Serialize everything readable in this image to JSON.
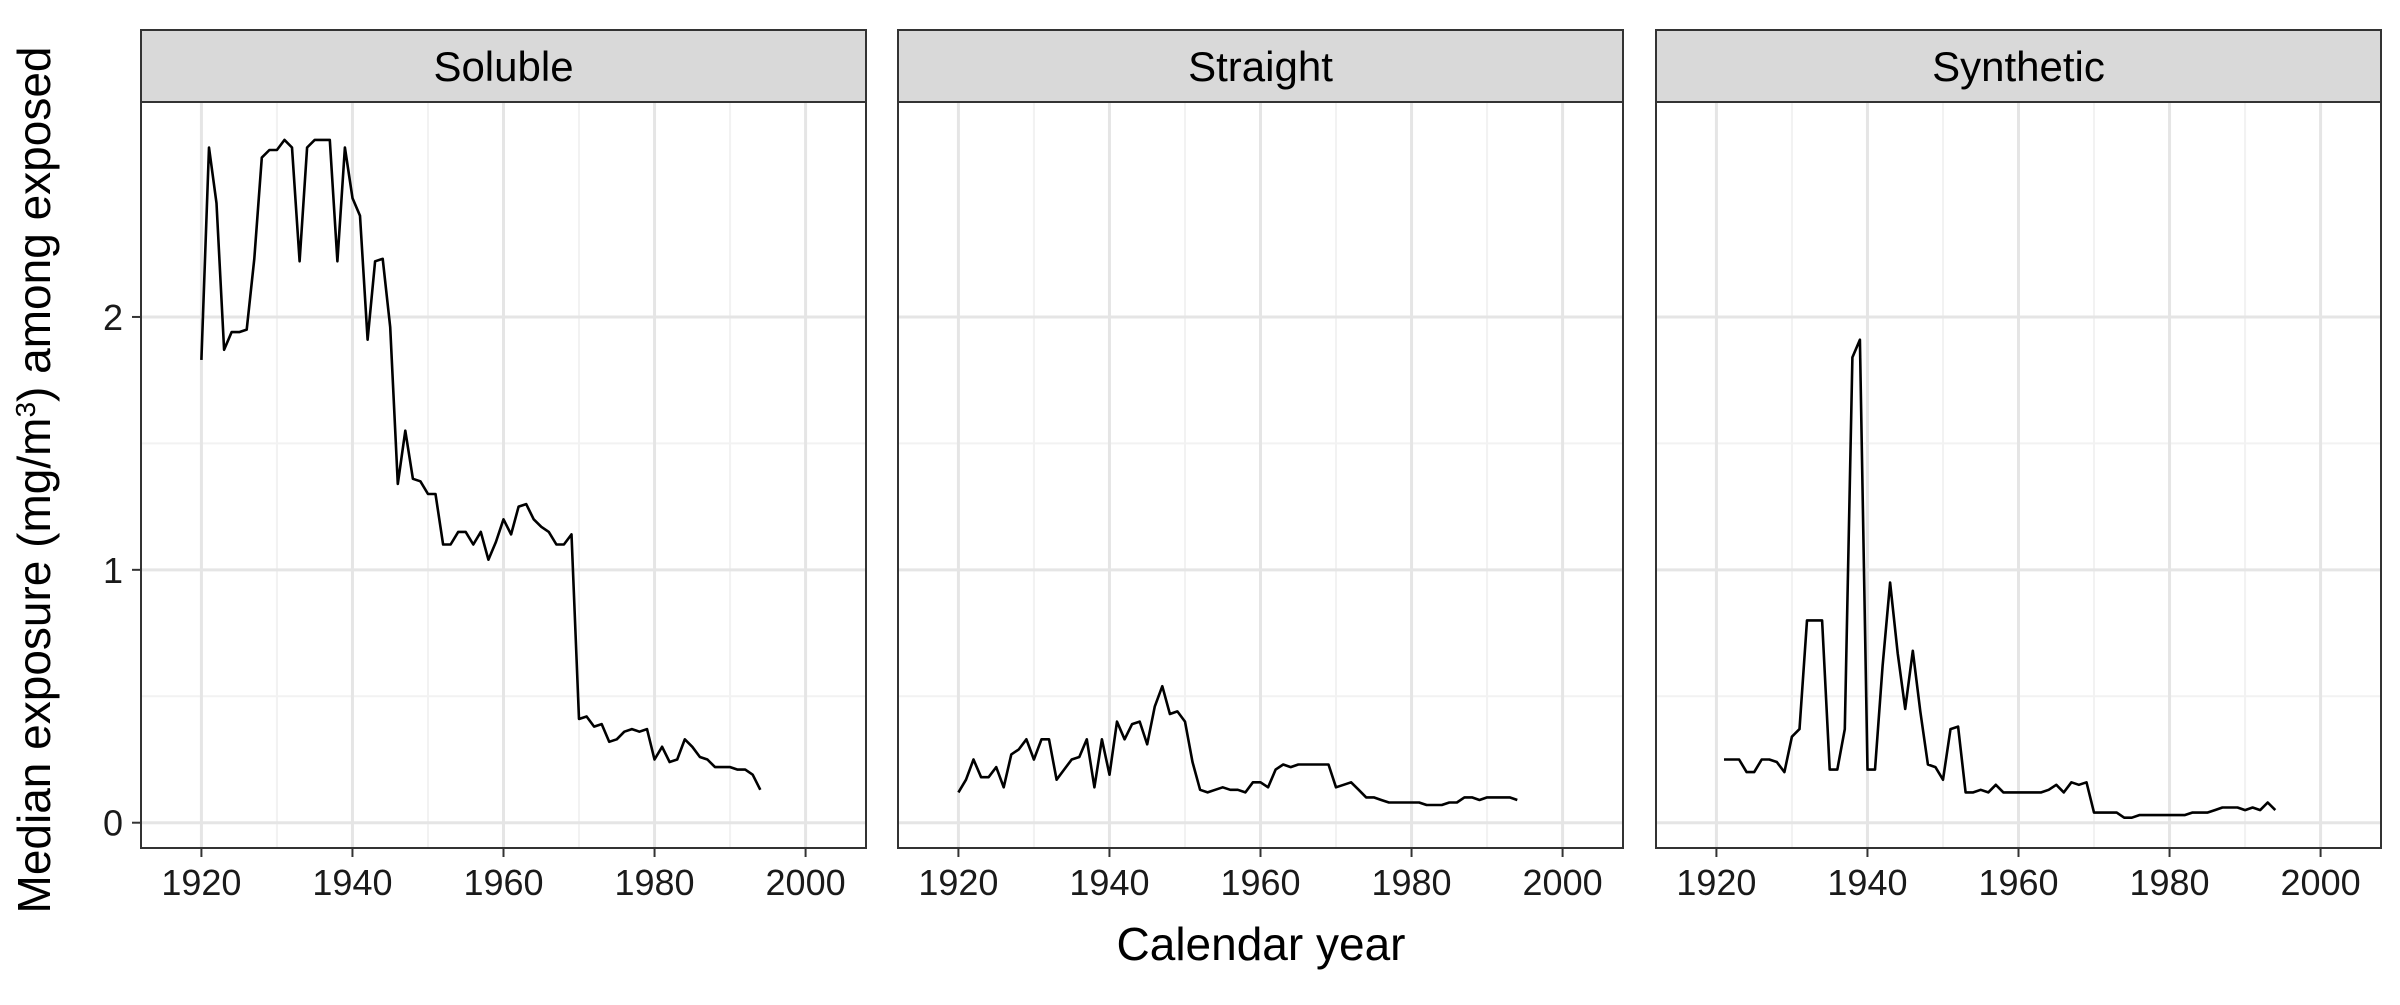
{
  "chart_data": {
    "type": "line",
    "xlabel": "Calendar year",
    "ylabel_prefix": "Median exposure (mg/m",
    "ylabel_sup": "3",
    "ylabel_suffix": ") among exposed",
    "xlim": [
      1912,
      2008
    ],
    "ylim": [
      -0.1,
      2.85
    ],
    "x_ticks": [
      1920,
      1940,
      1960,
      1980,
      2000
    ],
    "y_ticks": [
      0,
      1,
      2
    ],
    "grid": true,
    "line_color": "#000000",
    "panels": [
      {
        "name": "Soluble",
        "x": [
          1920,
          1921,
          1922,
          1923,
          1924,
          1925,
          1926,
          1927,
          1928,
          1929,
          1930,
          1931,
          1932,
          1933,
          1934,
          1935,
          1936,
          1937,
          1938,
          1939,
          1940,
          1941,
          1942,
          1943,
          1944,
          1945,
          1946,
          1947,
          1948,
          1949,
          1950,
          1951,
          1952,
          1953,
          1954,
          1955,
          1956,
          1957,
          1958,
          1959,
          1960,
          1961,
          1962,
          1963,
          1964,
          1965,
          1966,
          1967,
          1968,
          1969,
          1970,
          1971,
          1972,
          1973,
          1974,
          1975,
          1976,
          1977,
          1978,
          1979,
          1980,
          1981,
          1982,
          1983,
          1984,
          1985,
          1986,
          1987,
          1988,
          1989,
          1990,
          1991,
          1992,
          1993,
          1994
        ],
        "y": [
          1.83,
          2.67,
          2.45,
          1.87,
          1.94,
          1.94,
          1.95,
          2.23,
          2.63,
          2.66,
          2.66,
          2.7,
          2.67,
          2.22,
          2.67,
          2.7,
          2.7,
          2.7,
          2.22,
          2.67,
          2.47,
          2.4,
          1.91,
          2.22,
          2.23,
          1.96,
          1.34,
          1.55,
          1.36,
          1.35,
          1.3,
          1.3,
          1.1,
          1.1,
          1.15,
          1.15,
          1.1,
          1.15,
          1.04,
          1.11,
          1.2,
          1.14,
          1.25,
          1.26,
          1.2,
          1.17,
          1.15,
          1.1,
          1.1,
          1.14,
          0.41,
          0.42,
          0.38,
          0.39,
          0.32,
          0.33,
          0.36,
          0.37,
          0.36,
          0.37,
          0.25,
          0.3,
          0.24,
          0.25,
          0.33,
          0.3,
          0.26,
          0.25,
          0.22,
          0.22,
          0.22,
          0.21,
          0.21,
          0.19,
          0.13
        ]
      },
      {
        "name": "Straight",
        "x": [
          1920,
          1921,
          1922,
          1923,
          1924,
          1925,
          1926,
          1927,
          1928,
          1929,
          1930,
          1931,
          1932,
          1933,
          1934,
          1935,
          1936,
          1937,
          1938,
          1939,
          1940,
          1941,
          1942,
          1943,
          1944,
          1945,
          1946,
          1947,
          1948,
          1949,
          1950,
          1951,
          1952,
          1953,
          1954,
          1955,
          1956,
          1957,
          1958,
          1959,
          1960,
          1961,
          1962,
          1963,
          1964,
          1965,
          1966,
          1967,
          1968,
          1969,
          1970,
          1971,
          1972,
          1973,
          1974,
          1975,
          1976,
          1977,
          1978,
          1979,
          1980,
          1981,
          1982,
          1983,
          1984,
          1985,
          1986,
          1987,
          1988,
          1989,
          1990,
          1991,
          1992,
          1993,
          1994
        ],
        "y": [
          0.12,
          0.17,
          0.25,
          0.18,
          0.18,
          0.22,
          0.14,
          0.27,
          0.29,
          0.33,
          0.25,
          0.33,
          0.33,
          0.17,
          0.21,
          0.25,
          0.26,
          0.33,
          0.14,
          0.33,
          0.19,
          0.4,
          0.33,
          0.39,
          0.4,
          0.31,
          0.46,
          0.54,
          0.43,
          0.44,
          0.4,
          0.24,
          0.13,
          0.12,
          0.13,
          0.14,
          0.13,
          0.13,
          0.12,
          0.16,
          0.16,
          0.14,
          0.21,
          0.23,
          0.22,
          0.23,
          0.23,
          0.23,
          0.23,
          0.23,
          0.14,
          0.15,
          0.16,
          0.13,
          0.1,
          0.1,
          0.09,
          0.08,
          0.08,
          0.08,
          0.08,
          0.08,
          0.07,
          0.07,
          0.07,
          0.08,
          0.08,
          0.1,
          0.1,
          0.09,
          0.1,
          0.1,
          0.1,
          0.1,
          0.09
        ]
      },
      {
        "name": "Synthetic",
        "x": [
          1921,
          1922,
          1923,
          1924,
          1925,
          1926,
          1927,
          1928,
          1929,
          1930,
          1931,
          1932,
          1933,
          1934,
          1935,
          1936,
          1937,
          1938,
          1939,
          1940,
          1941,
          1942,
          1943,
          1944,
          1945,
          1946,
          1947,
          1948,
          1949,
          1950,
          1951,
          1952,
          1953,
          1954,
          1955,
          1956,
          1957,
          1958,
          1959,
          1960,
          1961,
          1962,
          1963,
          1964,
          1965,
          1966,
          1967,
          1968,
          1969,
          1970,
          1971,
          1972,
          1973,
          1974,
          1975,
          1976,
          1977,
          1978,
          1979,
          1980,
          1981,
          1982,
          1983,
          1984,
          1985,
          1986,
          1987,
          1988,
          1989,
          1990,
          1991,
          1992,
          1993,
          1994
        ],
        "y": [
          0.25,
          0.25,
          0.25,
          0.2,
          0.2,
          0.25,
          0.25,
          0.24,
          0.2,
          0.34,
          0.37,
          0.8,
          0.8,
          0.8,
          0.21,
          0.21,
          0.37,
          1.84,
          1.91,
          0.21,
          0.21,
          0.62,
          0.95,
          0.67,
          0.45,
          0.68,
          0.44,
          0.23,
          0.22,
          0.17,
          0.37,
          0.38,
          0.12,
          0.12,
          0.13,
          0.12,
          0.15,
          0.12,
          0.12,
          0.12,
          0.12,
          0.12,
          0.12,
          0.13,
          0.15,
          0.12,
          0.16,
          0.15,
          0.16,
          0.04,
          0.04,
          0.04,
          0.04,
          0.02,
          0.02,
          0.03,
          0.03,
          0.03,
          0.03,
          0.03,
          0.03,
          0.03,
          0.04,
          0.04,
          0.04,
          0.05,
          0.06,
          0.06,
          0.06,
          0.05,
          0.06,
          0.05,
          0.08,
          0.05
        ]
      }
    ]
  }
}
